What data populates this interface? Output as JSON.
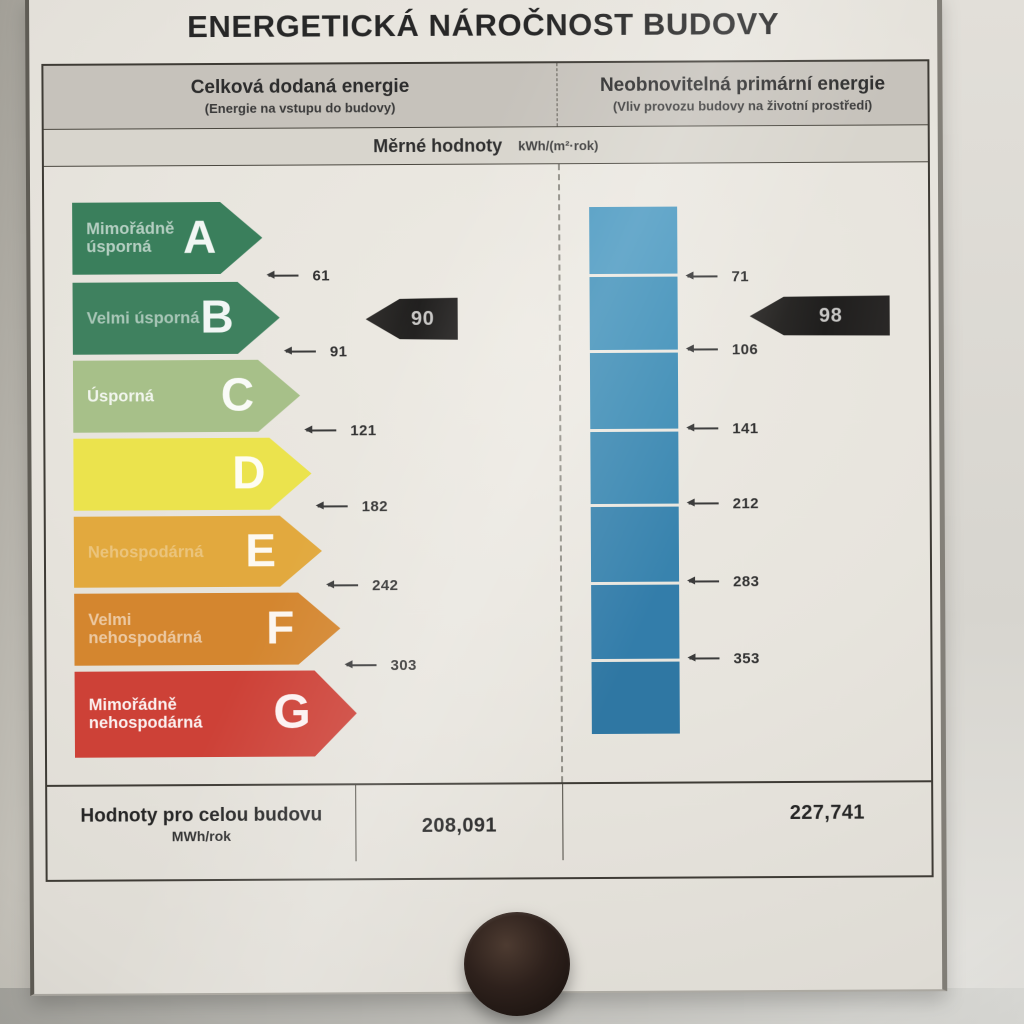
{
  "document": {
    "title": "ENERGETICKÁ NÁROČNOST BUDOVY",
    "header": {
      "left_column": {
        "title": "Celková dodaná energie",
        "subtitle": "(Energie na vstupu do budovy)"
      },
      "right_column": {
        "title": "Neobnovitelná primární energie",
        "subtitle": "(Vliv provozu budovy na životní prostředí)"
      }
    },
    "units_row": {
      "label": "Měrné hodnoty",
      "unit": "kWh/(m²·rok)"
    },
    "totals": {
      "label": "Hodnoty pro celou budovu",
      "unit": "MWh/rok",
      "left_value": "208,091",
      "right_value": "227,741"
    }
  },
  "chart_data": {
    "type": "energy-rating-scale",
    "unit": "kWh/(m²·rok)",
    "grades": [
      {
        "grade": "A",
        "label": "Mimořádně úsporná",
        "color": "#3a7f5c",
        "left_scale_limit": 61,
        "right_scale_limit": 71
      },
      {
        "grade": "B",
        "label": "Velmi úsporná",
        "color": "#3f815f",
        "left_scale_limit": 91,
        "right_scale_limit": 106
      },
      {
        "grade": "C",
        "label": "Úsporná",
        "color": "#a7c089",
        "left_scale_limit": 121,
        "right_scale_limit": 141
      },
      {
        "grade": "D",
        "label": "",
        "color": "#ebe34d",
        "left_scale_limit": 182,
        "right_scale_limit": 212
      },
      {
        "grade": "E",
        "label": "Nehospodárná",
        "color": "#e2a93e",
        "left_scale_limit": 242,
        "right_scale_limit": 283
      },
      {
        "grade": "F",
        "label": "Velmi nehospodárná",
        "color": "#d4862f",
        "left_scale_limit": 303,
        "right_scale_limit": 353
      },
      {
        "grade": "G",
        "label": "Mimořádně nehospodárná",
        "color": "#cd4137",
        "left_scale_limit": null,
        "right_scale_limit": null
      }
    ],
    "indicators": {
      "left_value": "90",
      "left_grade": "B",
      "right_value": "98",
      "right_grade": "B"
    },
    "right_bar_colors": [
      "#4b99c1",
      "#4191ba",
      "#3e8db6",
      "#3b88b2",
      "#3883ae",
      "#337daa",
      "#2f77a3"
    ]
  }
}
